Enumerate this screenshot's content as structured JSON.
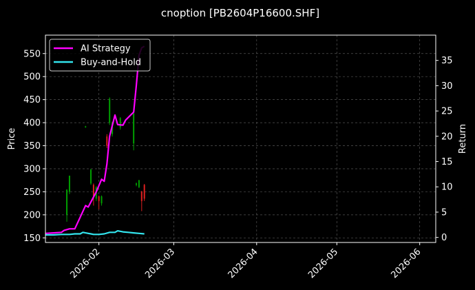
{
  "chart_data": {
    "type": "line",
    "title": "cnoption [PB2604P16600.SHF]",
    "xlabel": "",
    "ylabel": "Price",
    "y2label": "Return",
    "x_range": [
      "2026-01-12",
      "2026-06-07"
    ],
    "x_ticks": [
      "2026-02-01",
      "2026-03-01",
      "2026-04-01",
      "2026-05-01",
      "2026-06-01"
    ],
    "x_tick_labels": [
      "2026-02",
      "2026-03",
      "2026-04",
      "2026-05",
      "2026-06"
    ],
    "ylim": [
      140,
      590
    ],
    "y_ticks": [
      150,
      200,
      250,
      300,
      350,
      400,
      450,
      500,
      550
    ],
    "y2lim": [
      -1,
      40
    ],
    "y2_ticks": [
      0,
      5,
      10,
      15,
      20,
      25,
      30,
      35
    ],
    "grid": true,
    "legend_position": "top-left",
    "colors": {
      "background": "#000000",
      "up_candle": "#00a000",
      "down_candle": "#e02020",
      "grid": "#555555"
    },
    "candles": [
      {
        "date": "2026-01-20",
        "open": 200,
        "close": 255,
        "low": 185,
        "high": 255
      },
      {
        "date": "2026-01-21",
        "open": 250,
        "close": 285,
        "low": 245,
        "high": 285
      },
      {
        "date": "2026-01-27",
        "open": 390,
        "close": 392,
        "low": 389,
        "high": 393
      },
      {
        "date": "2026-01-29",
        "open": 268,
        "close": 298,
        "low": 265,
        "high": 300
      },
      {
        "date": "2026-01-30",
        "open": 265,
        "close": 240,
        "low": 220,
        "high": 268
      },
      {
        "date": "2026-01-31",
        "open": 235,
        "close": 260,
        "low": 230,
        "high": 262
      },
      {
        "date": "2026-02-01",
        "open": 240,
        "close": 230,
        "low": 212,
        "high": 242
      },
      {
        "date": "2026-02-02",
        "open": 225,
        "close": 240,
        "low": 220,
        "high": 242
      },
      {
        "date": "2026-02-04",
        "open": 370,
        "close": 350,
        "low": 345,
        "high": 375
      },
      {
        "date": "2026-02-05",
        "open": 400,
        "close": 452,
        "low": 395,
        "high": 455
      },
      {
        "date": "2026-02-06",
        "open": 375,
        "close": 400,
        "low": 370,
        "high": 402
      },
      {
        "date": "2026-02-09",
        "open": 390,
        "close": 410,
        "low": 385,
        "high": 412
      },
      {
        "date": "2026-02-14",
        "open": 355,
        "close": 420,
        "low": 340,
        "high": 422
      },
      {
        "date": "2026-02-15",
        "open": 265,
        "close": 268,
        "low": 262,
        "high": 270
      },
      {
        "date": "2026-02-16",
        "open": 260,
        "close": 275,
        "low": 258,
        "high": 276
      },
      {
        "date": "2026-02-17",
        "open": 250,
        "close": 230,
        "low": 208,
        "high": 252
      },
      {
        "date": "2026-02-18",
        "open": 265,
        "close": 235,
        "low": 230,
        "high": 267
      }
    ],
    "series": [
      {
        "name": "AI Strategy",
        "color": "#ff00ff",
        "axis": "return",
        "x": [
          "2026-01-12",
          "2026-01-15",
          "2026-01-18",
          "2026-01-19",
          "2026-01-21",
          "2026-01-23",
          "2026-01-25",
          "2026-01-27",
          "2026-01-28",
          "2026-01-29",
          "2026-01-31",
          "2026-02-02",
          "2026-02-03",
          "2026-02-04",
          "2026-02-05",
          "2026-02-07",
          "2026-02-08",
          "2026-02-10",
          "2026-02-11",
          "2026-02-14",
          "2026-02-15",
          "2026-02-16",
          "2026-02-17",
          "2026-02-18"
        ],
        "values": [
          0.8,
          0.9,
          1.0,
          1.4,
          1.7,
          1.7,
          4.0,
          6.3,
          6.0,
          7.0,
          9.0,
          11.5,
          11.1,
          14.5,
          20.0,
          24.2,
          22.3,
          22.2,
          23.2,
          24.8,
          30.0,
          36.0,
          37.5,
          37.8
        ]
      },
      {
        "name": "Buy-and-Hold",
        "color": "#33e5ee",
        "axis": "return",
        "x": [
          "2026-01-12",
          "2026-01-15",
          "2026-01-18",
          "2026-01-19",
          "2026-01-21",
          "2026-01-23",
          "2026-01-25",
          "2026-01-26",
          "2026-01-27",
          "2026-01-29",
          "2026-01-30",
          "2026-02-01",
          "2026-02-03",
          "2026-02-05",
          "2026-02-07",
          "2026-02-08",
          "2026-02-10",
          "2026-02-12",
          "2026-02-14",
          "2026-02-16",
          "2026-02-18"
        ],
        "values": [
          0.5,
          0.5,
          0.6,
          0.6,
          0.6,
          0.7,
          0.7,
          1.0,
          0.9,
          0.7,
          0.6,
          0.6,
          0.7,
          1.0,
          1.0,
          1.3,
          1.1,
          1.0,
          0.9,
          0.8,
          0.7
        ]
      }
    ]
  }
}
